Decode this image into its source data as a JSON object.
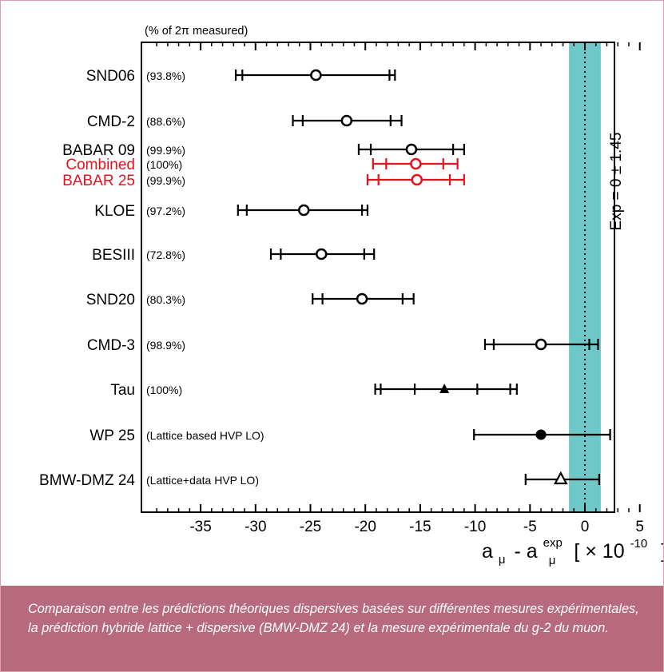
{
  "caption": "Comparaison entre les prédictions théoriques dispersives basées sur différentes mesures expérimentales, la prédiction hybride lattice + dispersive (BMW-DMZ 24) et la mesure expérimentale du g-2 du muon.",
  "colors": {
    "band": "#6ec8c8",
    "highlight": "#e8101c",
    "default": "#000000",
    "caption_bg": "#b76a7e",
    "frame_border": "#d8a0ad"
  },
  "chart_data": {
    "type": "scatter",
    "subtype": "error-bar comparison",
    "column_header": "(% of 2π measured)",
    "xlabel": {
      "base": "a",
      "sub": "μ",
      "minus": "- a",
      "sup_exp": "exp",
      "sub2": "μ",
      "units": "[ × 10",
      "exponent": "-10",
      "close": "]"
    },
    "xlim": [
      -40,
      5
    ],
    "xticks": [
      -35,
      -30,
      -25,
      -20,
      -15,
      -10,
      -5,
      0,
      5
    ],
    "experiment": {
      "label": "Exp = 0 ± 1.45",
      "value": 0,
      "uncertainty": 1.45,
      "line_style": "dotted"
    },
    "entries": [
      {
        "name": "SND06",
        "annotation": "(93.8%)",
        "value": -24.5,
        "err_outer": [
          -31.8,
          -17.3
        ],
        "inner_ticks": [
          -31.2,
          -17.8
        ],
        "marker": "open-circle",
        "highlight": false
      },
      {
        "name": "CMD-2",
        "annotation": "(88.6%)",
        "value": -21.7,
        "err_outer": [
          -26.6,
          -16.7
        ],
        "inner_ticks": [
          -25.7,
          -17.7
        ],
        "marker": "open-circle",
        "highlight": false
      },
      {
        "name": "BABAR 09",
        "annotation": "(99.9%)",
        "value": -15.8,
        "err_outer": [
          -20.6,
          -11.0
        ],
        "inner_ticks": [
          -19.5,
          -12.0
        ],
        "marker": "open-circle",
        "highlight": false
      },
      {
        "name": "Combined",
        "annotation": "(100%)",
        "value": -15.4,
        "err_outer": [
          -19.3,
          -11.6
        ],
        "inner_ticks": [
          -18.1,
          -12.9
        ],
        "marker": "open-circle",
        "highlight": true
      },
      {
        "name": "BABAR 25",
        "annotation": "(99.9%)",
        "value": -15.3,
        "err_outer": [
          -19.8,
          -11.0
        ],
        "inner_ticks": [
          -18.8,
          -12.3
        ],
        "marker": "open-circle",
        "highlight": true
      },
      {
        "name": "KLOE",
        "annotation": "(97.2%)",
        "value": -25.6,
        "err_outer": [
          -31.6,
          -19.8
        ],
        "inner_ticks": [
          -30.8,
          -20.3
        ],
        "marker": "open-circle",
        "highlight": false
      },
      {
        "name": "BESIII",
        "annotation": "(72.8%)",
        "value": -24.0,
        "err_outer": [
          -28.6,
          -19.2
        ],
        "inner_ticks": [
          -27.7,
          -20.1
        ],
        "marker": "open-circle",
        "highlight": false
      },
      {
        "name": "SND20",
        "annotation": "(80.3%)",
        "value": -20.3,
        "err_outer": [
          -24.8,
          -15.6
        ],
        "inner_ticks": [
          -23.9,
          -16.6
        ],
        "marker": "open-circle",
        "highlight": false
      },
      {
        "name": "CMD-3",
        "annotation": "(98.9%)",
        "value": -4.0,
        "err_outer": [
          -9.1,
          1.2
        ],
        "inner_ticks": [
          -8.3,
          0.4
        ],
        "marker": "open-circle",
        "highlight": false
      },
      {
        "name": "Tau",
        "annotation": "(100%)",
        "value": -12.8,
        "err_outer": [
          -19.1,
          -6.2
        ],
        "inner_ticks": [
          -18.6,
          -15.5,
          -9.8,
          -6.8
        ],
        "marker": "filled-triangle",
        "highlight": false
      },
      {
        "name": "WP 25",
        "annotation": "(Lattice based HVP LO)",
        "value": -4.0,
        "err_outer": [
          -10.1,
          2.3
        ],
        "inner_ticks": [],
        "marker": "filled-circle",
        "highlight": false
      },
      {
        "name": "BMW-DMZ 24",
        "annotation": "(Lattice+data HVP LO)",
        "value": -2.2,
        "err_outer": [
          -5.4,
          1.3
        ],
        "inner_ticks": [],
        "marker": "open-triangle",
        "highlight": false
      }
    ]
  }
}
